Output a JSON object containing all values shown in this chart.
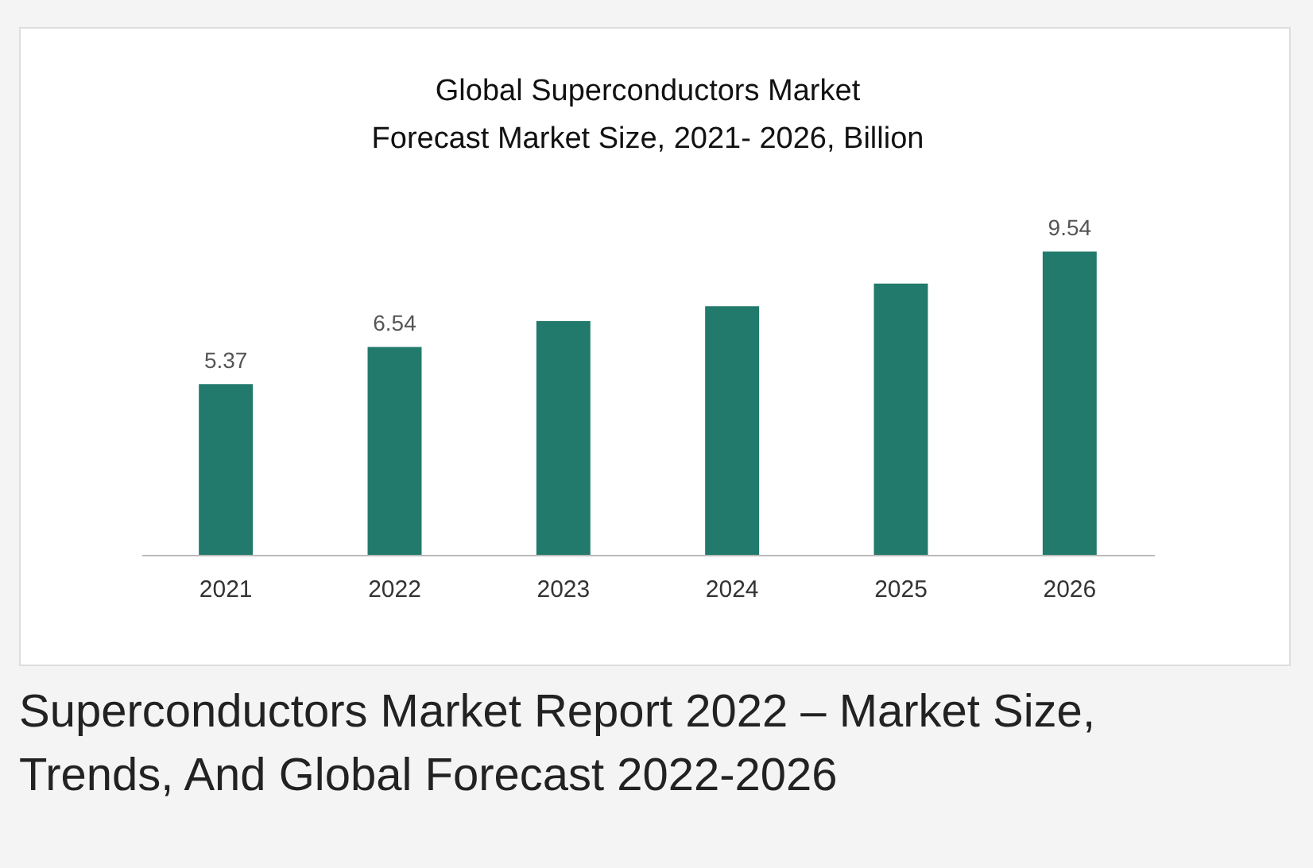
{
  "chart_data": {
    "type": "bar",
    "title": "Global Superconductors Market\nForecast Market Size, 2021- 2026, Billion",
    "categories": [
      "2021",
      "2022",
      "2023",
      "2024",
      "2025",
      "2026"
    ],
    "values": [
      5.37,
      6.54,
      7.35,
      7.82,
      8.53,
      9.54
    ],
    "value_labels": [
      "5.37",
      "6.54",
      null,
      null,
      null,
      "9.54"
    ],
    "color": "#217a6b",
    "annotations": [
      "Superconductors Market Report 2022 – Market Size, Trends, And Global Forecast 2022-2026"
    ]
  }
}
